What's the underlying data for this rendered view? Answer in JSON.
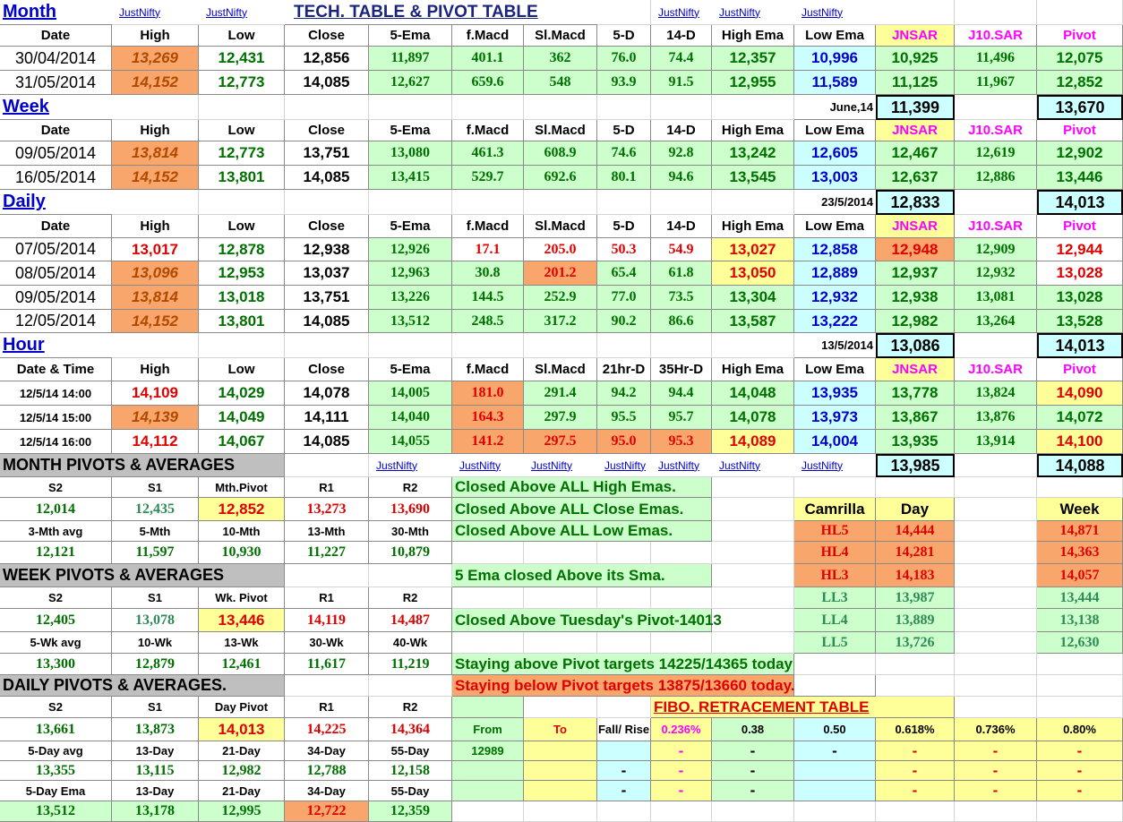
{
  "sheet": {
    "rows": [
      [
        "Month",
        "JustNifty",
        "JustNifty",
        "TECH. TABLE  &  PIVOT TABLE",
        "JustNifty",
        "JustNifty",
        "JustNifty"
      ],
      [
        "Date",
        "High",
        "Low",
        "Close",
        "5-Ema",
        "f.Macd",
        "Sl.Macd",
        "5-D",
        "14-D",
        "High Ema",
        "Low Ema",
        "JNSAR",
        "J10.SAR",
        "Pivot"
      ],
      [
        "30/04/2014",
        "13,269",
        "12,431",
        "12,856",
        "11,897",
        "401.1",
        "362",
        "76.0",
        "74.4",
        "12,357",
        "10,996",
        "10,925",
        "11,496",
        "12,075"
      ],
      [
        "31/05/2014",
        "14,152",
        "12,773",
        "14,085",
        "12,627",
        "659.6",
        "548",
        "93.9",
        "91.5",
        "12,955",
        "11,589",
        "11,125",
        "11,967",
        "12,852"
      ],
      [
        "Week",
        "June,14",
        "11,399",
        "13,670"
      ],
      [
        "Date",
        "High",
        "Low",
        "Close",
        "5-Ema",
        "f.Macd",
        "Sl.Macd",
        "5-D",
        "14-D",
        "High Ema",
        "Low Ema",
        "JNSAR",
        "J10.SAR",
        "Pivot"
      ],
      [
        "09/05/2014",
        "13,814",
        "12,773",
        "13,751",
        "13,080",
        "461.3",
        "608.9",
        "74.6",
        "92.8",
        "13,242",
        "12,605",
        "12,467",
        "12,619",
        "12,902"
      ],
      [
        "16/05/2014",
        "14,152",
        "13,801",
        "14,085",
        "13,415",
        "529.7",
        "692.6",
        "80.1",
        "94.6",
        "13,545",
        "13,003",
        "12,637",
        "12,886",
        "13,446"
      ],
      [
        "Daily",
        "23/5/2014",
        "12,833",
        "14,013"
      ],
      [
        "Date",
        "High",
        "Low",
        "Close",
        "5-Ema",
        "f.Macd",
        "Sl.Macd",
        "5-D",
        "14-D",
        "High Ema",
        "Low Ema",
        "JNSAR",
        "J10.SAR",
        "Pivot"
      ],
      [
        "07/05/2014",
        "13,017",
        "12,878",
        "12,938",
        "12,926",
        "17.1",
        "205.0",
        "50.3",
        "54.9",
        "13,027",
        "12,858",
        "12,948",
        "12,909",
        "12,944"
      ],
      [
        "08/05/2014",
        "13,096",
        "12,953",
        "13,037",
        "12,963",
        "30.8",
        "201.2",
        "65.4",
        "61.8",
        "13,050",
        "12,889",
        "12,937",
        "12,932",
        "13,028"
      ],
      [
        "09/05/2014",
        "13,814",
        "13,018",
        "13,751",
        "13,226",
        "144.5",
        "252.9",
        "77.0",
        "73.5",
        "13,304",
        "12,932",
        "12,938",
        "13,081",
        "13,028"
      ],
      [
        "12/05/2014",
        "14,152",
        "13,801",
        "14,085",
        "13,512",
        "248.5",
        "317.2",
        "90.2",
        "86.6",
        "13,587",
        "13,222",
        "12,982",
        "13,264",
        "13,528"
      ],
      [
        "Hour",
        "13/5/2014",
        "13,086",
        "14,013"
      ],
      [
        "Date & Time",
        "High",
        "Low",
        "Close",
        "5-Ema",
        "f.Macd",
        "Sl.Macd",
        "21hr-D",
        "35Hr-D",
        "High Ema",
        "Low Ema",
        "JNSAR",
        "J10.SAR",
        "Pivot"
      ],
      [
        "12/5/14 14:00",
        "14,109",
        "14,029",
        "14,078",
        "14,005",
        "181.0",
        "291.4",
        "94.2",
        "94.4",
        "14,048",
        "13,935",
        "13,778",
        "13,824",
        "14,090"
      ],
      [
        "12/5/14 15:00",
        "14,139",
        "14,049",
        "14,111",
        "14,040",
        "164.3",
        "297.9",
        "95.5",
        "95.7",
        "14,078",
        "13,973",
        "13,867",
        "13,876",
        "14,072"
      ],
      [
        "12/5/14 16:00",
        "14,112",
        "14,067",
        "14,085",
        "14,055",
        "141.2",
        "297.5",
        "95.0",
        "95.3",
        "14,089",
        "14,004",
        "13,935",
        "13,914",
        "14,100"
      ],
      [
        "MONTH PIVOTS  &  AVERAGES",
        "JustNifty",
        "JustNifty",
        "JustNifty",
        "JustNifty",
        "JustNifty",
        "JustNifty",
        "JustNifty",
        "13,985",
        "14,088"
      ],
      [
        "S2",
        "S1",
        "Mth.Pivot",
        "R1",
        "R2",
        "Closed Above ALL High Emas."
      ],
      [
        "12,014",
        "12,435",
        "12,852",
        "13,273",
        "13,690",
        "Closed Above ALL Close Emas.",
        "Camrilla",
        "Day",
        "Week"
      ],
      [
        "3-Mth avg",
        "5-Mth",
        "10-Mth",
        "13-Mth",
        "30-Mth",
        "Closed Above ALL Low Emas.",
        "HL5",
        "14,444",
        "14,871"
      ],
      [
        "12,121",
        "11,597",
        "10,930",
        "11,227",
        "10,879",
        "HL4",
        "14,281",
        "14,363"
      ],
      [
        "WEEK PIVOTS  &  AVERAGES",
        "5 Ema closed Above its Sma.",
        "HL3",
        "14,183",
        "14,057"
      ],
      [
        "S2",
        "S1",
        "Wk. Pivot",
        "R1",
        "R2",
        "LL3",
        "13,987",
        "13,444"
      ],
      [
        "12,405",
        "13,078",
        "13,446",
        "14,119",
        "14,487",
        "Closed Above Tuesday's Pivot-14013",
        "LL4",
        "13,889",
        "13,138"
      ],
      [
        "5-Wk avg",
        "10-Wk",
        "13-Wk",
        "30-Wk",
        "40-Wk",
        "LL5",
        "13,726",
        "12,630"
      ],
      [
        "13,300",
        "12,879",
        "12,461",
        "11,617",
        "11,219",
        "Staying above Pivot targets 14225/14365 today"
      ],
      [
        "DAILY PIVOTS  &  AVERAGES.",
        "Staying below Pivot targets 13875/13660 today."
      ],
      [
        "S2",
        "S1",
        "Day  Pivot",
        "R1",
        "R2",
        "FIBO. RETRACEMENT TABLE"
      ],
      [
        "13,661",
        "13,873",
        "14,013",
        "14,225",
        "14,364",
        "From",
        "To",
        "Fall/ Rise",
        "0.236%",
        "0.38",
        "0.50",
        "0.618%",
        "0.736%",
        "0.80%"
      ],
      [
        "5-Day avg",
        "13-Day",
        "21-Day",
        "34-Day",
        "55-Day",
        "12989",
        "-",
        "-",
        "-",
        "-",
        "-",
        "-"
      ],
      [
        "13,355",
        "13,115",
        "12,982",
        "12,788",
        "12,158",
        "-",
        "-",
        "-",
        "-",
        "-",
        "-"
      ],
      [
        "5-Day Ema",
        "13-Day",
        "21-Day",
        "34-Day",
        "55-Day",
        "-",
        "-",
        "-",
        "-",
        "-",
        "-"
      ],
      [
        "13,512",
        "13,178",
        "12,995",
        "12,722",
        "12,359"
      ]
    ]
  }
}
